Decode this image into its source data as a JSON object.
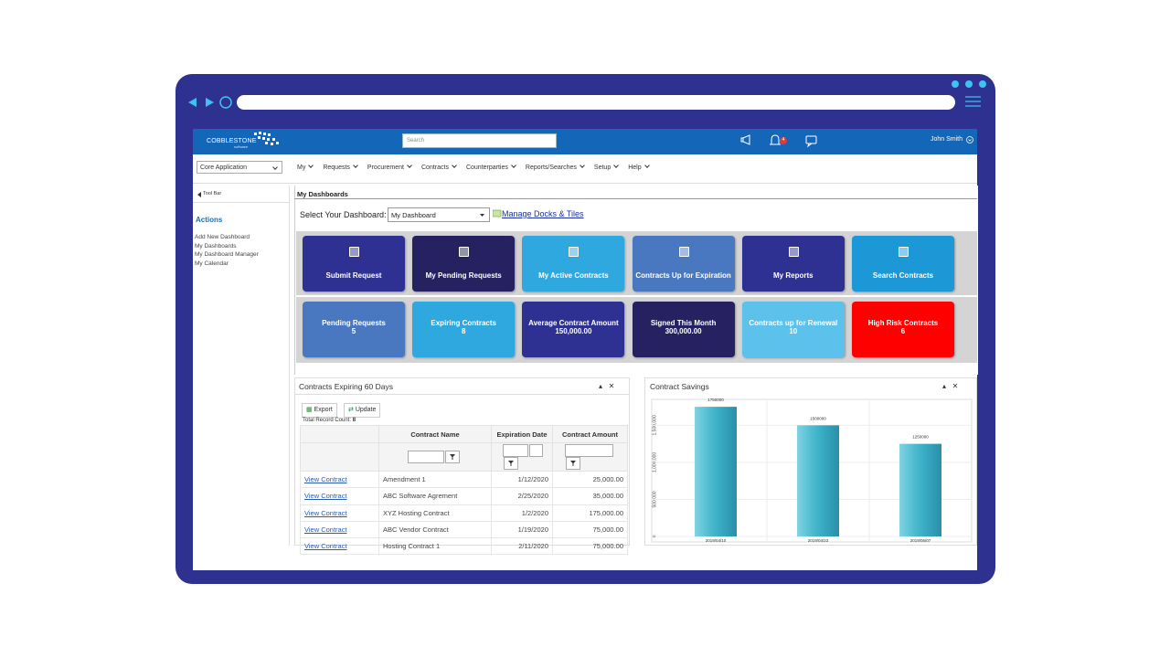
{
  "app": {
    "logo": "COBBLESTONE",
    "logo_sub": "software",
    "search": "Search",
    "notifications": "4",
    "user": "John Smith"
  },
  "nav": {
    "module": "Core Application",
    "menu": [
      "My",
      "Requests",
      "Procurement",
      "Contracts",
      "Counterparties",
      "Reports/Searches",
      "Setup",
      "Help"
    ]
  },
  "sidebar": {
    "toolbar": "Tool Bar",
    "heading": "Actions",
    "links": [
      "Add New Dashboard",
      "My Dashboards",
      "My Dashboard Manager",
      "My Calendar"
    ]
  },
  "dashboard": {
    "title": "My Dashboards",
    "select_label": "Select Your Dashboard:",
    "selected": "My Dashboard",
    "manage_link": "Manage Docks & Tiles",
    "tiles": [
      {
        "label": "Submit Request",
        "color": "#2e3192"
      },
      {
        "label": "My Pending Requests",
        "color": "#262262"
      },
      {
        "label": "My Active Contracts",
        "color": "#2fa8e0"
      },
      {
        "label": "Contracts Up for Expiration",
        "color": "#4a78c0"
      },
      {
        "label": "My Reports",
        "color": "#2e3192"
      },
      {
        "label": "Search Contracts",
        "color": "#1c98d6"
      }
    ],
    "kpis": [
      {
        "label": "Pending Requests",
        "value": "5",
        "color": "#4a78c0"
      },
      {
        "label": "Expiring Contracts",
        "value": "8",
        "color": "#2fa8e0"
      },
      {
        "label": "Average Contract Amount",
        "value": "150,000.00",
        "color": "#2e3192"
      },
      {
        "label": "Signed This Month",
        "value": "300,000.00",
        "color": "#262262"
      },
      {
        "label": "Contracts up for Renewal",
        "value": "10",
        "color": "#5cc2ec"
      },
      {
        "label": "High Risk Contracts",
        "value": "6",
        "color": "#ff0000"
      }
    ]
  },
  "expiring": {
    "title": "Contracts Expiring 60 Days",
    "export": "Export",
    "update": "Update",
    "record_count_label": "Total Record Count:",
    "record_count": "8",
    "columns": [
      "Contract Name",
      "Expiration Date",
      "Contract Amount"
    ],
    "rows": [
      [
        "View Contract",
        "Amendment 1",
        "1/12/2020",
        "25,000.00"
      ],
      [
        "View Contract",
        "ABC Software Agrement",
        "2/25/2020",
        "35,000.00"
      ],
      [
        "View Contract",
        "XYZ Hosting Contract",
        "1/2/2020",
        "175,000.00"
      ],
      [
        "View Contract",
        "ABC Vendor Contract",
        "1/19/2020",
        "75,000.00"
      ],
      [
        "View Contract",
        "Hosting Contract 1",
        "2/11/2020",
        "75,000.00"
      ]
    ]
  },
  "chart_data": {
    "type": "bar",
    "title": "Contract Savings",
    "categories": [
      "2019/04/10",
      "2019/04/23",
      "2019/05/07"
    ],
    "values": [
      1750000,
      1500000,
      1250000
    ],
    "color": "#3cb2c9",
    "ylim": [
      0,
      1850000
    ],
    "yticks": [
      0,
      {
        "value": 500000,
        "label": "500,000"
      },
      {
        "value": 1000000,
        "label": "1,000,000"
      },
      {
        "value": 1500000,
        "label": "1,500,000"
      }
    ],
    "grid": true
  }
}
